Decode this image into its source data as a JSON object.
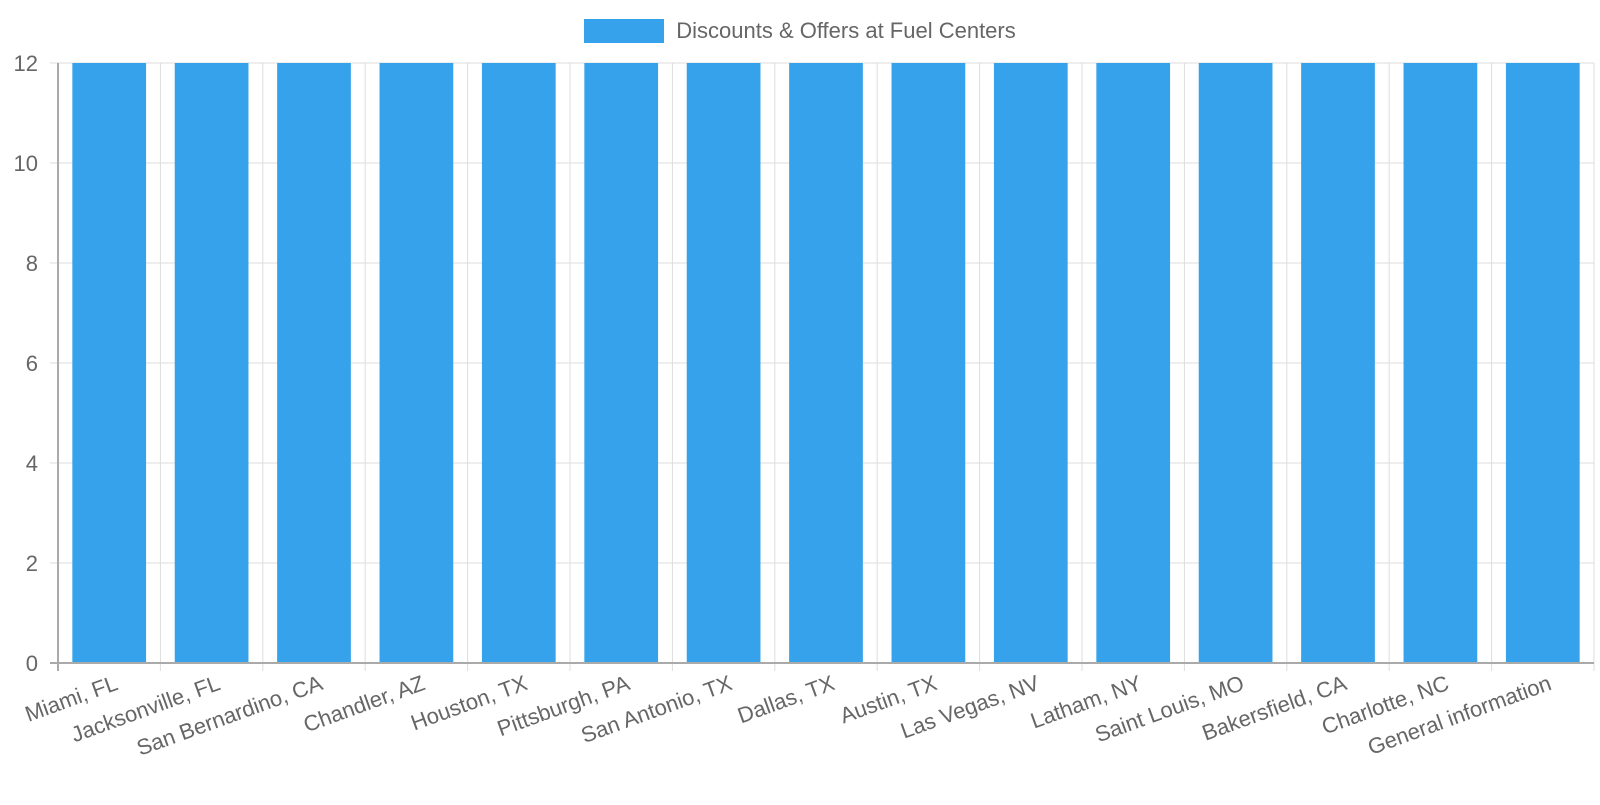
{
  "chart_data": {
    "type": "bar",
    "categories": [
      "Miami, FL",
      "Jacksonville, FL",
      "San Bernardino, CA",
      "Chandler, AZ",
      "Houston, TX",
      "Pittsburgh, PA",
      "San Antonio, TX",
      "Dallas, TX",
      "Austin, TX",
      "Las Vegas, NV",
      "Latham, NY",
      "Saint Louis, MO",
      "Bakersfield, CA",
      "Charlotte, NC",
      "General information"
    ],
    "series": [
      {
        "name": "Discounts & Offers at Fuel Centers",
        "values": [
          12,
          12,
          12,
          12,
          12,
          12,
          12,
          12,
          12,
          12,
          12,
          12,
          12,
          12,
          12
        ],
        "color": "#36A2EB"
      }
    ],
    "title": "",
    "xlabel": "",
    "ylabel": "",
    "ylim": [
      0,
      12
    ],
    "yticks": [
      0,
      2,
      4,
      6,
      8,
      10,
      12
    ],
    "legend_position": "top-center",
    "grid": true
  }
}
